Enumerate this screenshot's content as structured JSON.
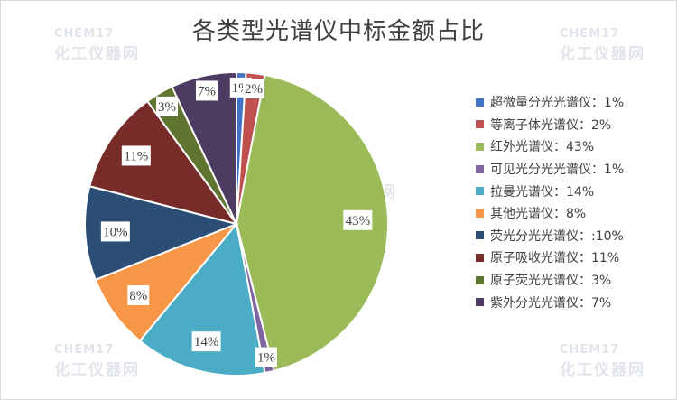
{
  "chart_data": {
    "type": "pie",
    "title": "各类型光谱仪中标金额占比",
    "legend_position": "right",
    "slices": [
      {
        "label": "1%",
        "legend": "超微量分光光谱仪：1%",
        "value": 1,
        "color": "#4472c4"
      },
      {
        "label": "2%",
        "legend": "等离子体光谱仪：2%",
        "value": 2,
        "color": "#c0504d"
      },
      {
        "label": "43%",
        "legend": "红外光谱仪：43%",
        "value": 43,
        "color": "#9bbb59"
      },
      {
        "label": "1%",
        "legend": "可见光分光光谱仪：1%",
        "value": 1,
        "color": "#8064a2"
      },
      {
        "label": "14%",
        "legend": "拉曼光谱仪：14%",
        "value": 14,
        "color": "#4bacc6"
      },
      {
        "label": "8%",
        "legend": "其他光谱仪：8%",
        "value": 8,
        "color": "#f79646"
      },
      {
        "label": "10%",
        "legend": "荧光分光光谱仪：:10%",
        "value": 10,
        "color": "#2c4d75"
      },
      {
        "label": "11%",
        "legend": "原子吸收光谱仪：11%",
        "value": 11,
        "color": "#772c2a"
      },
      {
        "label": "3%",
        "legend": "原子荧光光谱仪：3%",
        "value": 3,
        "color": "#5f7530"
      },
      {
        "label": "7%",
        "legend": "紫外分光光谱仪：7%",
        "value": 7,
        "color": "#4d3b62"
      }
    ]
  },
  "watermark": {
    "en": "CHEM17",
    "cn": "化工仪器网"
  }
}
